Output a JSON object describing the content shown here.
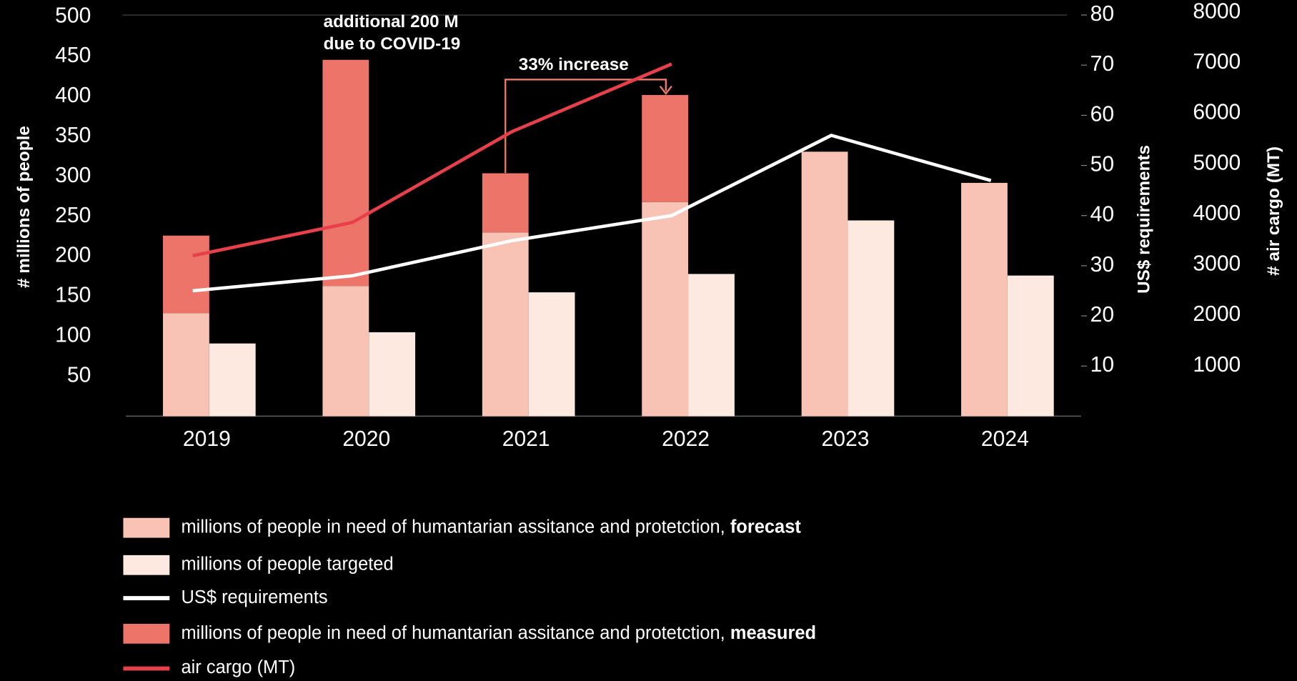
{
  "chart_data": {
    "type": "combo",
    "categories": [
      "2019",
      "2020",
      "2021",
      "2022",
      "2023",
      "2024"
    ],
    "series": [
      {
        "name": "millions of people in need of humantarian assitance and protetction, forecast",
        "type": "bar",
        "color": "#f8c3b4",
        "values": [
          129,
          163,
          230,
          268,
          331,
          292
        ]
      },
      {
        "name": "millions of people targeted",
        "type": "bar",
        "color": "#fde9df",
        "values": [
          91,
          105,
          155,
          178,
          245,
          176
        ]
      },
      {
        "name": "US$ requirements",
        "type": "line",
        "axis": "y2",
        "color": "#ffffff",
        "values": [
          25,
          28,
          35,
          40,
          56,
          47
        ]
      },
      {
        "name": "millions of people in need of humantarian assitance and protetction, measured",
        "type": "bar",
        "stack_on": 0,
        "color": "#ec7469",
        "values": [
          97,
          283,
          74,
          134,
          null,
          null
        ]
      },
      {
        "name": "air cargo (MT)",
        "type": "line",
        "axis": "y3",
        "color": "#e8404a",
        "values": [
          3180,
          3840,
          5640,
          6980,
          null,
          null
        ]
      }
    ],
    "ylabel": "# millions of people",
    "y2label": "US$ requirements",
    "y3label": "# air cargo (MT)",
    "y3color": "#ef5a5a",
    "ylim": [
      0,
      500
    ],
    "yticks": [
      50,
      100,
      150,
      200,
      250,
      300,
      350,
      400,
      450,
      500
    ],
    "y2lim": [
      0,
      80
    ],
    "y2ticks": [
      10,
      20,
      30,
      40,
      50,
      60,
      70,
      80
    ],
    "y3lim": [
      0,
      8000
    ],
    "y3ticks": [
      1000,
      2000,
      3000,
      4000,
      5000,
      6000,
      7000,
      8000
    ],
    "annotations": [
      "additional 200 M",
      "due to COVID-19",
      "33% increase"
    ],
    "annotation_color": "#ee7a6c"
  }
}
